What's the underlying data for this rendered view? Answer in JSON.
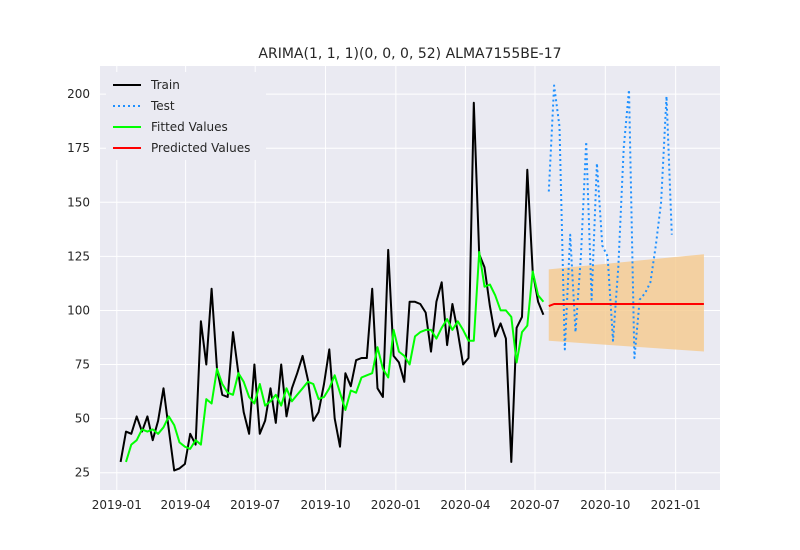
{
  "chart_data": {
    "type": "line",
    "title": "ARIMA(1, 1, 1)(0, 0, 0, 52) ALMA7155BE-17",
    "xlabel": "",
    "ylabel": "",
    "xlim": [
      "2018-12-10",
      "2021-02-28"
    ],
    "ylim": [
      17,
      213
    ],
    "x_ticks": [
      "2019-01-01",
      "2019-04-01",
      "2019-07-01",
      "2019-10-01",
      "2020-01-01",
      "2020-04-01",
      "2020-07-01",
      "2020-10-01",
      "2021-01-01"
    ],
    "x_tick_labels": [
      "2019-01",
      "2019-04",
      "2019-07",
      "2019-10",
      "2020-01",
      "2020-04",
      "2020-07",
      "2020-10",
      "2021-01"
    ],
    "y_ticks": [
      25,
      50,
      75,
      100,
      125,
      150,
      175,
      200
    ],
    "grid": true,
    "legend": "upper-left",
    "series": [
      {
        "name": "Train",
        "color": "#000000",
        "style": "solid",
        "x": [
          "2019-01-06",
          "2019-01-13",
          "2019-01-20",
          "2019-01-27",
          "2019-02-03",
          "2019-02-10",
          "2019-02-17",
          "2019-02-24",
          "2019-03-03",
          "2019-03-10",
          "2019-03-17",
          "2019-03-24",
          "2019-03-31",
          "2019-04-07",
          "2019-04-14",
          "2019-04-21",
          "2019-04-28",
          "2019-05-05",
          "2019-05-12",
          "2019-05-19",
          "2019-05-26",
          "2019-06-02",
          "2019-06-09",
          "2019-06-16",
          "2019-06-23",
          "2019-06-30",
          "2019-07-07",
          "2019-07-14",
          "2019-07-21",
          "2019-07-28",
          "2019-08-04",
          "2019-08-11",
          "2019-08-18",
          "2019-08-25",
          "2019-09-01",
          "2019-09-08",
          "2019-09-15",
          "2019-09-22",
          "2019-09-29",
          "2019-10-06",
          "2019-10-13",
          "2019-10-20",
          "2019-10-27",
          "2019-11-03",
          "2019-11-10",
          "2019-11-17",
          "2019-11-24",
          "2019-12-01",
          "2019-12-08",
          "2019-12-15",
          "2019-12-22",
          "2019-12-29",
          "2020-01-05",
          "2020-01-12",
          "2020-01-19",
          "2020-01-26",
          "2020-02-02",
          "2020-02-09",
          "2020-02-16",
          "2020-02-23",
          "2020-03-01",
          "2020-03-08",
          "2020-03-15",
          "2020-03-22",
          "2020-03-29",
          "2020-04-05",
          "2020-04-12",
          "2020-04-19",
          "2020-04-26",
          "2020-05-03",
          "2020-05-10",
          "2020-05-17",
          "2020-05-24",
          "2020-05-31",
          "2020-06-07",
          "2020-06-14",
          "2020-06-21",
          "2020-06-28",
          "2020-07-05",
          "2020-07-12"
        ],
        "y": [
          30,
          44,
          43,
          51,
          44,
          51,
          40,
          49,
          64,
          45,
          26,
          27,
          29,
          43,
          38,
          95,
          75,
          110,
          73,
          61,
          60,
          90,
          71,
          53,
          43,
          75,
          43,
          49,
          64,
          48,
          75,
          51,
          64,
          71,
          79,
          68,
          49,
          53,
          66,
          82,
          50,
          37,
          71,
          65,
          77,
          78,
          78,
          110,
          64,
          60,
          128,
          79,
          76,
          67,
          104,
          104,
          103,
          99,
          81,
          104,
          113,
          84,
          103,
          90,
          75,
          78,
          196,
          126,
          120,
          102,
          88,
          94,
          87,
          30,
          92,
          97,
          165,
          118,
          104,
          98
        ]
      },
      {
        "name": "Test",
        "color": "#1e90ff",
        "style": "dotted",
        "x": [
          "2020-07-19",
          "2020-07-26",
          "2020-08-02",
          "2020-08-09",
          "2020-08-16",
          "2020-08-23",
          "2020-08-30",
          "2020-09-06",
          "2020-09-13",
          "2020-09-20",
          "2020-09-27",
          "2020-10-04",
          "2020-10-11",
          "2020-10-18",
          "2020-10-25",
          "2020-11-01",
          "2020-11-08",
          "2020-11-15",
          "2020-11-22",
          "2020-11-29",
          "2020-12-06",
          "2020-12-13",
          "2020-12-20",
          "2020-12-27"
        ],
        "y": [
          155,
          204,
          185,
          82,
          135,
          90,
          125,
          178,
          105,
          168,
          130,
          125,
          86,
          120,
          175,
          202,
          78,
          105,
          108,
          113,
          130,
          150,
          199,
          135
        ]
      },
      {
        "name": "Fitted Values",
        "color": "#00ff00",
        "style": "solid",
        "x": [
          "2019-01-13",
          "2019-01-20",
          "2019-01-27",
          "2019-02-03",
          "2019-02-10",
          "2019-02-17",
          "2019-02-24",
          "2019-03-03",
          "2019-03-10",
          "2019-03-17",
          "2019-03-24",
          "2019-03-31",
          "2019-04-07",
          "2019-04-14",
          "2019-04-21",
          "2019-04-28",
          "2019-05-05",
          "2019-05-12",
          "2019-05-19",
          "2019-05-26",
          "2019-06-02",
          "2019-06-09",
          "2019-06-16",
          "2019-06-23",
          "2019-06-30",
          "2019-07-07",
          "2019-07-14",
          "2019-07-21",
          "2019-07-28",
          "2019-08-04",
          "2019-08-11",
          "2019-08-18",
          "2019-08-25",
          "2019-09-01",
          "2019-09-08",
          "2019-09-15",
          "2019-09-22",
          "2019-09-29",
          "2019-10-06",
          "2019-10-13",
          "2019-10-20",
          "2019-10-27",
          "2019-11-03",
          "2019-11-10",
          "2019-11-17",
          "2019-11-24",
          "2019-12-01",
          "2019-12-08",
          "2019-12-15",
          "2019-12-22",
          "2019-12-29",
          "2020-01-05",
          "2020-01-12",
          "2020-01-19",
          "2020-01-26",
          "2020-02-02",
          "2020-02-09",
          "2020-02-16",
          "2020-02-23",
          "2020-03-01",
          "2020-03-08",
          "2020-03-15",
          "2020-03-22",
          "2020-03-29",
          "2020-04-05",
          "2020-04-12",
          "2020-04-19",
          "2020-04-26",
          "2020-05-03",
          "2020-05-10",
          "2020-05-17",
          "2020-05-24",
          "2020-05-31",
          "2020-06-07",
          "2020-06-14",
          "2020-06-21",
          "2020-06-28",
          "2020-07-05",
          "2020-07-12"
        ],
        "y": [
          30,
          38,
          40,
          45,
          44,
          45,
          43,
          46,
          51,
          47,
          39,
          37,
          36,
          40,
          38,
          59,
          57,
          73,
          66,
          62,
          61,
          71,
          67,
          60,
          57,
          66,
          56,
          58,
          61,
          56,
          64,
          58,
          61,
          64,
          67,
          66,
          59,
          60,
          64,
          70,
          62,
          54,
          63,
          62,
          69,
          70,
          71,
          83,
          73,
          69,
          91,
          81,
          79,
          75,
          88,
          90,
          91,
          91,
          87,
          92,
          96,
          91,
          95,
          91,
          86,
          86,
          127,
          111,
          112,
          107,
          100,
          100,
          97,
          76,
          90,
          93,
          118,
          107,
          104
        ]
      },
      {
        "name": "Predicted Values",
        "color": "#ff0000",
        "style": "solid",
        "x": [
          "2020-07-19",
          "2020-07-26",
          "2020-08-02",
          "2020-08-09",
          "2020-08-16",
          "2020-08-23",
          "2020-08-30",
          "2020-09-06",
          "2020-09-13",
          "2020-09-20",
          "2020-09-27",
          "2020-10-04",
          "2020-10-11",
          "2020-10-18",
          "2020-10-25",
          "2020-11-01",
          "2020-11-08",
          "2020-11-15",
          "2020-11-22",
          "2020-11-29",
          "2020-12-06",
          "2020-12-13",
          "2020-12-20",
          "2020-12-27",
          "2021-01-03",
          "2021-01-10",
          "2021-01-17",
          "2021-01-24",
          "2021-01-31",
          "2021-02-07"
        ],
        "y": [
          102,
          103,
          103,
          103,
          103,
          103,
          103,
          103,
          103,
          103,
          103,
          103,
          103,
          103,
          103,
          103,
          103,
          103,
          103,
          103,
          103,
          103,
          103,
          103,
          103,
          103,
          103,
          103,
          103,
          103
        ]
      }
    ],
    "confidence_band": {
      "color": "#f5c98c",
      "x": [
        "2020-07-19",
        "2021-02-07"
      ],
      "lower": [
        86,
        81
      ],
      "upper": [
        119,
        126
      ]
    }
  }
}
